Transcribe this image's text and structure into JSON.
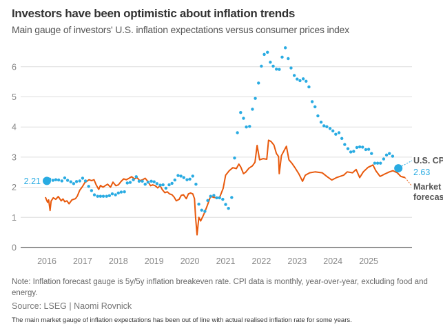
{
  "header": {
    "title": "Investors have been optimistic about inflation trends",
    "subtitle": "Main gauge of investors' U.S. inflation expectations versus consumer prices index"
  },
  "footer": {
    "note": "Note: Inflation forecast gauge is 5y/5y inflation breakeven rate. CPI data is monthly, year-over-year, excluding food and energy.",
    "source": "Source: LSEG | Naomi Rovnick",
    "caption": "The main market gauge of inflation expectations has been out of line with actual realised inflation rate for some years."
  },
  "chart_data": {
    "type": "line",
    "title": "Investors have been optimistic about inflation trends",
    "subtitle": "Main gauge of investors' U.S. inflation expectations versus consumer prices index",
    "xlabel": "",
    "ylabel": "",
    "x_ticks": [
      "2016",
      "2017",
      "2018",
      "2019",
      "2020",
      "2021",
      "2022",
      "2023",
      "2024",
      "2025"
    ],
    "y_ticks": [
      "0",
      "1",
      "2",
      "3",
      "4",
      "5",
      "6"
    ],
    "xlim": [
      2015.3,
      2026.05
    ],
    "ylim": [
      0,
      6.5
    ],
    "grid": true,
    "colors": {
      "cpi": "#29abe2",
      "market": "#e8590c",
      "grid": "#dddddd",
      "axis": "#555555"
    },
    "annotations": {
      "start_value": "2.21",
      "cpi_label": "U.S. CPI",
      "cpi_end_value": "2.63",
      "market_label_line1": "Market",
      "market_label_line2": "forecast"
    },
    "series": [
      {
        "name": "U.S. CPI",
        "style": "dots",
        "points": [
          [
            2016.0,
            2.21
          ],
          [
            2016.08,
            2.27
          ],
          [
            2016.17,
            2.23
          ],
          [
            2016.25,
            2.25
          ],
          [
            2016.33,
            2.24
          ],
          [
            2016.42,
            2.21
          ],
          [
            2016.5,
            2.31
          ],
          [
            2016.58,
            2.23
          ],
          [
            2016.67,
            2.18
          ],
          [
            2016.75,
            2.12
          ],
          [
            2016.83,
            2.19
          ],
          [
            2016.92,
            2.21
          ],
          [
            2017.0,
            2.3
          ],
          [
            2017.08,
            2.21
          ],
          [
            2017.17,
            2.03
          ],
          [
            2017.25,
            1.89
          ],
          [
            2017.33,
            1.75
          ],
          [
            2017.42,
            1.7
          ],
          [
            2017.5,
            1.7
          ],
          [
            2017.58,
            1.7
          ],
          [
            2017.67,
            1.7
          ],
          [
            2017.75,
            1.72
          ],
          [
            2017.83,
            1.78
          ],
          [
            2017.92,
            1.75
          ],
          [
            2018.0,
            1.81
          ],
          [
            2018.08,
            1.84
          ],
          [
            2018.17,
            1.85
          ],
          [
            2018.25,
            2.14
          ],
          [
            2018.33,
            2.16
          ],
          [
            2018.42,
            2.25
          ],
          [
            2018.5,
            2.35
          ],
          [
            2018.58,
            2.2
          ],
          [
            2018.67,
            2.2
          ],
          [
            2018.75,
            2.1
          ],
          [
            2018.83,
            2.17
          ],
          [
            2018.92,
            2.2
          ],
          [
            2019.0,
            2.18
          ],
          [
            2019.08,
            2.12
          ],
          [
            2019.17,
            2.07
          ],
          [
            2019.25,
            2.08
          ],
          [
            2019.33,
            1.97
          ],
          [
            2019.42,
            2.08
          ],
          [
            2019.5,
            2.13
          ],
          [
            2019.58,
            2.24
          ],
          [
            2019.67,
            2.39
          ],
          [
            2019.75,
            2.37
          ],
          [
            2019.83,
            2.32
          ],
          [
            2019.92,
            2.25
          ],
          [
            2020.0,
            2.27
          ],
          [
            2020.08,
            2.37
          ],
          [
            2020.17,
            2.1
          ],
          [
            2020.25,
            1.44
          ],
          [
            2020.33,
            1.24
          ],
          [
            2020.42,
            1.2
          ],
          [
            2020.5,
            1.56
          ],
          [
            2020.58,
            1.7
          ],
          [
            2020.67,
            1.73
          ],
          [
            2020.75,
            1.65
          ],
          [
            2020.83,
            1.65
          ],
          [
            2020.92,
            1.6
          ],
          [
            2021.0,
            1.43
          ],
          [
            2021.08,
            1.3
          ],
          [
            2021.17,
            1.66
          ],
          [
            2021.25,
            2.97
          ],
          [
            2021.33,
            3.81
          ],
          [
            2021.42,
            4.48
          ],
          [
            2021.5,
            4.29
          ],
          [
            2021.58,
            4.0
          ],
          [
            2021.67,
            4.02
          ],
          [
            2021.75,
            4.59
          ],
          [
            2021.83,
            4.95
          ],
          [
            2021.92,
            5.46
          ],
          [
            2022.0,
            6.02
          ],
          [
            2022.08,
            6.41
          ],
          [
            2022.17,
            6.48
          ],
          [
            2022.25,
            6.15
          ],
          [
            2022.33,
            6.02
          ],
          [
            2022.42,
            5.92
          ],
          [
            2022.5,
            5.91
          ],
          [
            2022.58,
            6.32
          ],
          [
            2022.67,
            6.63
          ],
          [
            2022.75,
            6.27
          ],
          [
            2022.83,
            5.96
          ],
          [
            2022.92,
            5.71
          ],
          [
            2023.0,
            5.59
          ],
          [
            2023.08,
            5.54
          ],
          [
            2023.17,
            5.6
          ],
          [
            2023.25,
            5.52
          ],
          [
            2023.33,
            5.33
          ],
          [
            2023.42,
            4.84
          ],
          [
            2023.5,
            4.67
          ],
          [
            2023.58,
            4.37
          ],
          [
            2023.67,
            4.16
          ],
          [
            2023.75,
            4.04
          ],
          [
            2023.83,
            4.01
          ],
          [
            2023.92,
            3.95
          ],
          [
            2024.0,
            3.87
          ],
          [
            2024.08,
            3.76
          ],
          [
            2024.17,
            3.81
          ],
          [
            2024.25,
            3.62
          ],
          [
            2024.33,
            3.42
          ],
          [
            2024.42,
            3.28
          ],
          [
            2024.5,
            3.17
          ],
          [
            2024.58,
            3.19
          ],
          [
            2024.67,
            3.32
          ],
          [
            2024.75,
            3.34
          ],
          [
            2024.83,
            3.33
          ],
          [
            2024.92,
            3.25
          ],
          [
            2025.0,
            3.26
          ],
          [
            2025.08,
            3.12
          ],
          [
            2025.17,
            2.8
          ],
          [
            2025.25,
            2.8
          ],
          [
            2025.33,
            2.8
          ],
          [
            2025.42,
            2.94
          ],
          [
            2025.5,
            3.07
          ],
          [
            2025.58,
            3.12
          ],
          [
            2025.67,
            3.03
          ],
          [
            2025.83,
            2.63
          ]
        ]
      },
      {
        "name": "Market forecast (5y/5y breakeven)",
        "style": "line",
        "points": [
          [
            2015.96,
            1.67
          ],
          [
            2016.02,
            1.5
          ],
          [
            2016.05,
            1.58
          ],
          [
            2016.09,
            1.23
          ],
          [
            2016.12,
            1.54
          ],
          [
            2016.18,
            1.65
          ],
          [
            2016.25,
            1.6
          ],
          [
            2016.32,
            1.69
          ],
          [
            2016.4,
            1.55
          ],
          [
            2016.45,
            1.61
          ],
          [
            2016.5,
            1.52
          ],
          [
            2016.56,
            1.55
          ],
          [
            2016.62,
            1.45
          ],
          [
            2016.7,
            1.58
          ],
          [
            2016.75,
            1.6
          ],
          [
            2016.8,
            1.62
          ],
          [
            2016.85,
            1.7
          ],
          [
            2016.92,
            1.9
          ],
          [
            2017.0,
            2.03
          ],
          [
            2017.06,
            2.15
          ],
          [
            2017.12,
            2.2
          ],
          [
            2017.18,
            2.25
          ],
          [
            2017.25,
            2.22
          ],
          [
            2017.32,
            2.25
          ],
          [
            2017.38,
            2.08
          ],
          [
            2017.45,
            1.93
          ],
          [
            2017.5,
            2.06
          ],
          [
            2017.57,
            2.0
          ],
          [
            2017.63,
            2.05
          ],
          [
            2017.7,
            2.1
          ],
          [
            2017.78,
            2.0
          ],
          [
            2017.85,
            2.17
          ],
          [
            2017.93,
            2.05
          ],
          [
            2018.0,
            2.08
          ],
          [
            2018.08,
            2.2
          ],
          [
            2018.15,
            2.28
          ],
          [
            2018.22,
            2.25
          ],
          [
            2018.3,
            2.3
          ],
          [
            2018.37,
            2.35
          ],
          [
            2018.45,
            2.28
          ],
          [
            2018.52,
            2.32
          ],
          [
            2018.6,
            2.22
          ],
          [
            2018.68,
            2.25
          ],
          [
            2018.75,
            2.3
          ],
          [
            2018.82,
            2.2
          ],
          [
            2018.9,
            2.05
          ],
          [
            2018.96,
            2.08
          ],
          [
            2019.03,
            2.05
          ],
          [
            2019.1,
            1.98
          ],
          [
            2019.17,
            2.05
          ],
          [
            2019.23,
            1.92
          ],
          [
            2019.3,
            1.82
          ],
          [
            2019.37,
            1.85
          ],
          [
            2019.43,
            1.78
          ],
          [
            2019.5,
            1.75
          ],
          [
            2019.56,
            1.67
          ],
          [
            2019.62,
            1.55
          ],
          [
            2019.7,
            1.6
          ],
          [
            2019.76,
            1.73
          ],
          [
            2019.82,
            1.75
          ],
          [
            2019.9,
            1.62
          ],
          [
            2019.96,
            1.78
          ],
          [
            2020.02,
            1.81
          ],
          [
            2020.08,
            1.78
          ],
          [
            2020.13,
            1.62
          ],
          [
            2020.16,
            1.0
          ],
          [
            2020.2,
            0.42
          ],
          [
            2020.25,
            1.0
          ],
          [
            2020.3,
            0.88
          ],
          [
            2020.35,
            1.0
          ],
          [
            2020.4,
            1.13
          ],
          [
            2020.48,
            1.37
          ],
          [
            2020.58,
            1.7
          ],
          [
            2020.68,
            1.66
          ],
          [
            2020.83,
            1.66
          ],
          [
            2020.93,
            1.96
          ],
          [
            2021.0,
            2.4
          ],
          [
            2021.1,
            2.55
          ],
          [
            2021.2,
            2.65
          ],
          [
            2021.3,
            2.62
          ],
          [
            2021.37,
            2.77
          ],
          [
            2021.42,
            2.68
          ],
          [
            2021.5,
            2.45
          ],
          [
            2021.56,
            2.5
          ],
          [
            2021.65,
            2.63
          ],
          [
            2021.75,
            2.71
          ],
          [
            2021.82,
            2.83
          ],
          [
            2021.88,
            3.39
          ],
          [
            2021.95,
            2.91
          ],
          [
            2022.05,
            2.95
          ],
          [
            2022.15,
            2.93
          ],
          [
            2022.2,
            3.56
          ],
          [
            2022.27,
            3.52
          ],
          [
            2022.35,
            3.4
          ],
          [
            2022.42,
            3.12
          ],
          [
            2022.48,
            3.02
          ],
          [
            2022.5,
            2.45
          ],
          [
            2022.56,
            3.05
          ],
          [
            2022.7,
            3.36
          ],
          [
            2022.77,
            2.91
          ],
          [
            2022.85,
            2.8
          ],
          [
            2022.95,
            2.63
          ],
          [
            2023.05,
            2.44
          ],
          [
            2023.15,
            2.2
          ],
          [
            2023.23,
            2.4
          ],
          [
            2023.35,
            2.48
          ],
          [
            2023.5,
            2.51
          ],
          [
            2023.7,
            2.48
          ],
          [
            2023.83,
            2.36
          ],
          [
            2023.97,
            2.24
          ],
          [
            2024.1,
            2.32
          ],
          [
            2024.3,
            2.4
          ],
          [
            2024.4,
            2.51
          ],
          [
            2024.55,
            2.48
          ],
          [
            2024.65,
            2.59
          ],
          [
            2024.75,
            2.32
          ],
          [
            2024.85,
            2.51
          ],
          [
            2024.98,
            2.66
          ],
          [
            2025.12,
            2.74
          ],
          [
            2025.2,
            2.55
          ],
          [
            2025.32,
            2.36
          ],
          [
            2025.45,
            2.44
          ],
          [
            2025.58,
            2.51
          ],
          [
            2025.68,
            2.55
          ],
          [
            2025.8,
            2.48
          ],
          [
            2025.9,
            2.36
          ],
          [
            2026.02,
            2.32
          ]
        ]
      }
    ]
  }
}
